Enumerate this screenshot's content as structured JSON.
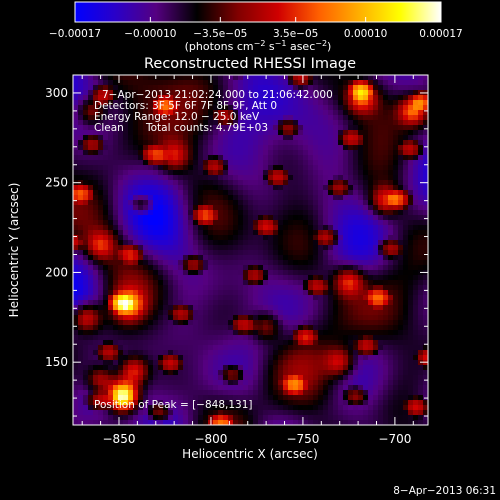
{
  "chart_data": {
    "type": "heatmap",
    "title": "Reconstructed RHESSI Image",
    "xlabel": "Heliocentric X (arcsec)",
    "ylabel": "Heliocentric Y (arcsec)",
    "xlim": [
      -875,
      -682
    ],
    "ylim": [
      115,
      310
    ],
    "x_ticks": [
      -850,
      -800,
      -750,
      -700
    ],
    "x_tick_labels": [
      "−850",
      "−800",
      "−750",
      "−700"
    ],
    "y_ticks": [
      150,
      200,
      250,
      300
    ],
    "y_tick_labels": [
      "150",
      "200",
      "250",
      "300"
    ],
    "colorbar": {
      "range": [
        -0.00017,
        0.00017
      ],
      "ticks": [
        -0.00017,
        -0.0001,
        -3.5e-05,
        3.5e-05,
        0.0001,
        0.00017
      ],
      "tick_labels": [
        "−0.00017",
        "−0.00010",
        "−3.5e−05",
        "3.5e−05",
        "0.00010",
        "0.00017"
      ],
      "colors": [
        "#0000ff",
        "#2a00c8",
        "#550080",
        "#000000",
        "#800000",
        "#d00000",
        "#ff6000",
        "#ffb000",
        "#ffff00",
        "#ffffff"
      ],
      "unit_prefix": "(photons cm",
      "unit_exp1": "−2",
      "unit_mid": " s",
      "unit_exp2": "−1",
      "unit_mid2": " asec",
      "unit_exp3": "−2",
      "unit_suffix": ")"
    },
    "annotations": {
      "time_range": "7−Apr−2013 21:02:24.000 to 21:06:42.000",
      "detectors": "Detectors: 3F 5F 6F 7F 8F 9F, Att 0",
      "energy": "Energy Range: 12.0 − 25.0 keV",
      "algorithm": "Clean",
      "counts": "Total counts: 4.79E+03",
      "peak": "Position of Peak = [−848,131]"
    },
    "peak": [
      -848,
      131
    ],
    "bright_sources": [
      {
        "x": -848,
        "y": 131,
        "amp": 1.6
      },
      {
        "x": -842,
        "y": 145,
        "amp": 0.7
      },
      {
        "x": -860,
        "y": 140,
        "amp": 0.6
      },
      {
        "x": -845,
        "y": 182,
        "amp": 0.85
      },
      {
        "x": -868,
        "y": 175,
        "amp": 0.7
      },
      {
        "x": -860,
        "y": 215,
        "amp": 0.55
      },
      {
        "x": -725,
        "y": 195,
        "amp": 0.65
      },
      {
        "x": -705,
        "y": 240,
        "amp": 0.65
      },
      {
        "x": -690,
        "y": 290,
        "amp": 0.8
      },
      {
        "x": -718,
        "y": 297,
        "amp": 0.7
      },
      {
        "x": -730,
        "y": 150,
        "amp": 0.55
      },
      {
        "x": -820,
        "y": 265,
        "amp": 0.5
      },
      {
        "x": -865,
        "y": 290,
        "amp": 0.55
      },
      {
        "x": -770,
        "y": 170,
        "amp": 0.45
      }
    ],
    "grid": false
  },
  "footer": {
    "timestamp": "8−Apr−2013 06:31"
  }
}
